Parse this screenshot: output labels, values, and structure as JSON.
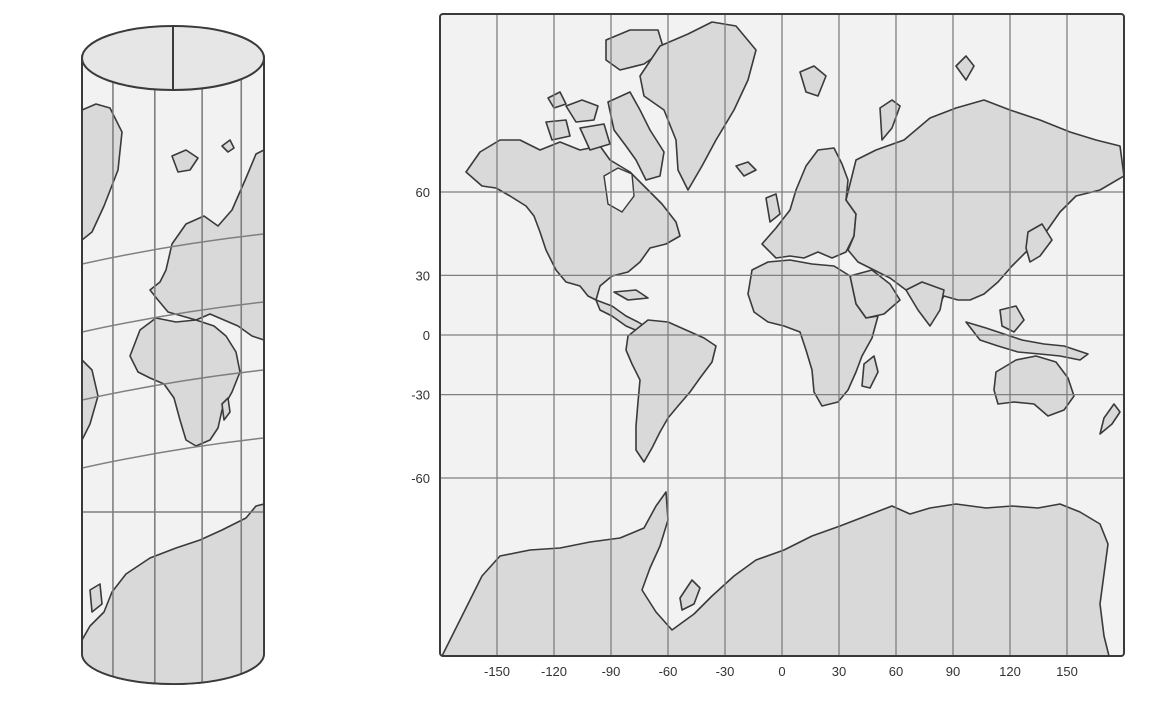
{
  "colors": {
    "land": "#d9d9d9",
    "ocean": "#f2f2f2",
    "coast": "#3a3a3a",
    "grid": "#7f7f7f"
  },
  "map_projection": {
    "projection": "Mercator",
    "meridians": [
      -150,
      -120,
      -90,
      -60,
      -30,
      0,
      30,
      60,
      90,
      120,
      150
    ],
    "parallels": [
      60,
      30,
      0,
      -30,
      -60
    ],
    "x_tick_labels": [
      "-150",
      "-120",
      "-90",
      "-60",
      "-30",
      "0",
      "30",
      "60",
      "90",
      "120",
      "150"
    ],
    "y_tick_labels": [
      "60",
      "30",
      "0",
      "-30",
      "-60"
    ]
  },
  "cylinder_view": {
    "projection": "cylinder wrapped globe",
    "meridian_count": 5,
    "parallel_count": 5
  }
}
